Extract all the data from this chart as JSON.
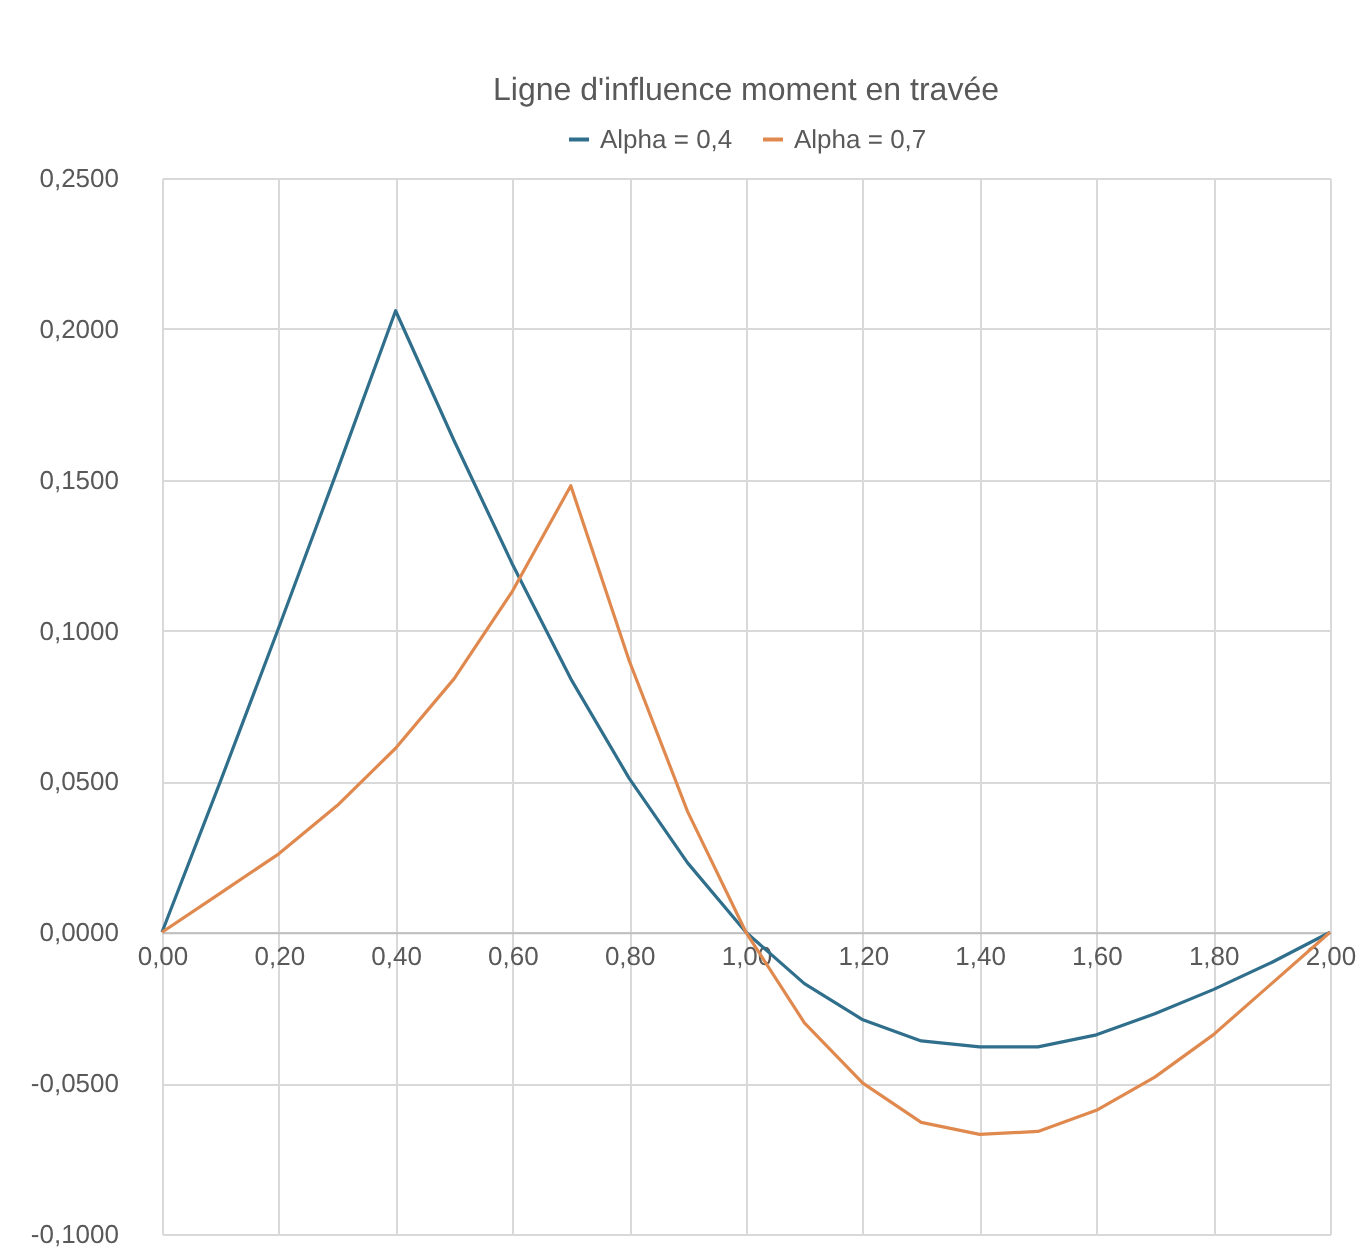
{
  "chart_data": {
    "type": "line",
    "title": "Ligne d'influence moment en travée",
    "x": [
      0,
      0.1,
      0.2,
      0.3,
      0.4,
      0.5,
      0.6,
      0.7,
      0.8,
      0.9,
      1.0,
      1.1,
      1.2,
      1.3,
      1.4,
      1.5,
      1.6,
      1.7,
      1.8,
      1.9,
      2.0
    ],
    "series": [
      {
        "name": "Alpha = 0,4",
        "color": "#2f6f8c",
        "values": [
          0,
          0.05,
          0.101,
          0.153,
          0.206,
          0.163,
          0.122,
          0.084,
          0.051,
          0.023,
          0,
          -0.017,
          -0.029,
          -0.036,
          -0.038,
          -0.038,
          -0.034,
          -0.027,
          -0.019,
          -0.01,
          0
        ]
      },
      {
        "name": "Alpha = 0,7",
        "color": "#e0894f",
        "values": [
          0,
          0.013,
          0.026,
          0.042,
          0.061,
          0.084,
          0.113,
          0.148,
          0.09,
          0.04,
          0,
          -0.03,
          -0.05,
          -0.063,
          -0.067,
          -0.066,
          -0.059,
          -0.048,
          -0.034,
          -0.017,
          0
        ]
      }
    ],
    "xlim": [
      0,
      2
    ],
    "xticks": [
      {
        "value": 0,
        "label": "0,00"
      },
      {
        "value": 0.2,
        "label": "0,20"
      },
      {
        "value": 0.4,
        "label": "0,40"
      },
      {
        "value": 0.6,
        "label": "0,60"
      },
      {
        "value": 0.8,
        "label": "0,80"
      },
      {
        "value": 1,
        "label": "1,00"
      },
      {
        "value": 1.2,
        "label": "1,20"
      },
      {
        "value": 1.4,
        "label": "1,40"
      },
      {
        "value": 1.6,
        "label": "1,60"
      },
      {
        "value": 1.8,
        "label": "1,80"
      },
      {
        "value": 2,
        "label": "2,00"
      }
    ],
    "ylim": [
      -0.1,
      0.25
    ],
    "yticks": [
      {
        "value": -0.1,
        "label": "-0,1000"
      },
      {
        "value": -0.05,
        "label": "-0,0500"
      },
      {
        "value": 0,
        "label": "0,0000"
      },
      {
        "value": 0.05,
        "label": "0,0500"
      },
      {
        "value": 0.1,
        "label": "0,1000"
      },
      {
        "value": 0.15,
        "label": "0,1500"
      },
      {
        "value": 0.2,
        "label": "0,2000"
      },
      {
        "value": 0.25,
        "label": "0,2500"
      }
    ],
    "grid": true,
    "legend": "top",
    "marker": "none",
    "line_style": "solid"
  }
}
